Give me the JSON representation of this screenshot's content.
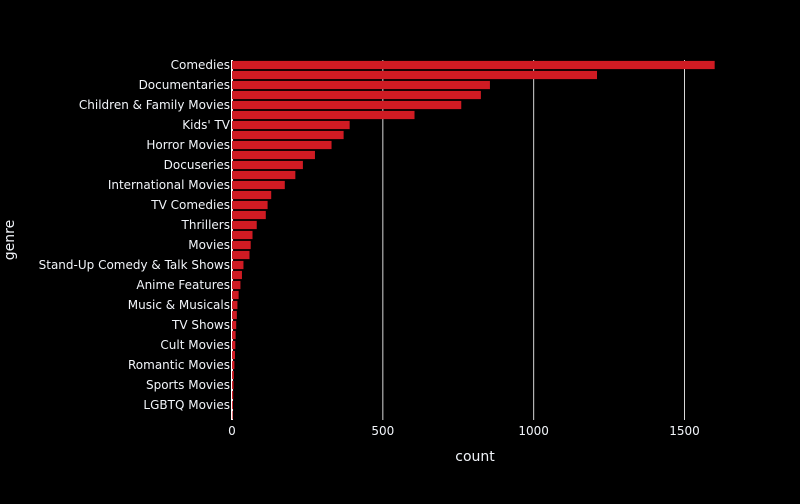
{
  "chart_data": {
    "type": "bar",
    "orientation": "horizontal",
    "title": "",
    "xlabel": "count",
    "ylabel": "genre",
    "xlim": [
      0,
      1800
    ],
    "x_ticks": [
      0,
      500,
      1000,
      1500
    ],
    "x_tick_labels": [
      "0",
      "500",
      "1000",
      "1500"
    ],
    "grid": true,
    "bar_color": "#cf1b23",
    "background_color": "#000000",
    "text_color": "#f2f5fa",
    "categories": [
      "Comedies",
      "",
      "Documentaries",
      "",
      "Children & Family Movies",
      "",
      "Kids' TV",
      "",
      "Horror Movies",
      "",
      "Docuseries",
      "",
      "International Movies",
      "",
      "TV Comedies",
      "",
      "Thrillers",
      "",
      "Movies",
      "",
      "Stand-Up Comedy & Talk Shows",
      "",
      "Anime Features",
      "",
      "Music & Musicals",
      "",
      "TV Shows",
      "",
      "Cult Movies",
      "",
      "Romantic Movies",
      "",
      "Sports Movies",
      "",
      "LGBTQ Movies",
      ""
    ],
    "values": [
      1600,
      1210,
      855,
      825,
      760,
      605,
      390,
      370,
      330,
      275,
      235,
      210,
      175,
      130,
      118,
      112,
      82,
      68,
      62,
      58,
      38,
      33,
      28,
      22,
      18,
      16,
      14,
      12,
      11,
      10,
      8,
      6,
      5,
      4,
      3,
      2
    ]
  }
}
